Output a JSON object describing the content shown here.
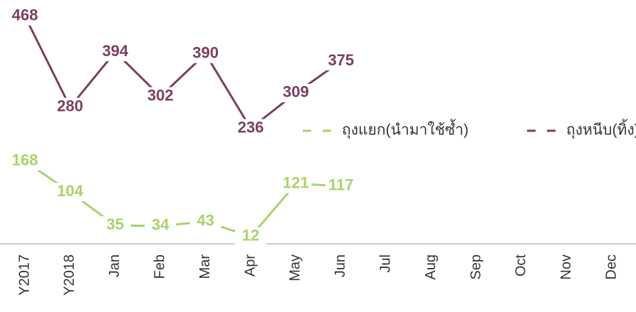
{
  "chart_data": {
    "type": "line",
    "categories": [
      "Y2017",
      "Y2018",
      "Jan",
      "Feb",
      "Mar",
      "Apr",
      "May",
      "Jun",
      "Jul",
      "Aug",
      "Sep",
      "Oct",
      "Nov",
      "Dec"
    ],
    "series": [
      {
        "name": "ถุงแยก(นำมาใช้ซ้ำ)",
        "color": "#a9d26a",
        "values": [
          168,
          104,
          35,
          34,
          43,
          12,
          121,
          117,
          null,
          null,
          null,
          null,
          null,
          null
        ]
      },
      {
        "name": "ถุงหนีบ(ทิ้ง)",
        "color": "#7b3f5e",
        "values": [
          468,
          280,
          394,
          302,
          390,
          236,
          309,
          375,
          null,
          null,
          null,
          null,
          null,
          null
        ]
      }
    ],
    "ylim": [
      0,
      500
    ]
  }
}
